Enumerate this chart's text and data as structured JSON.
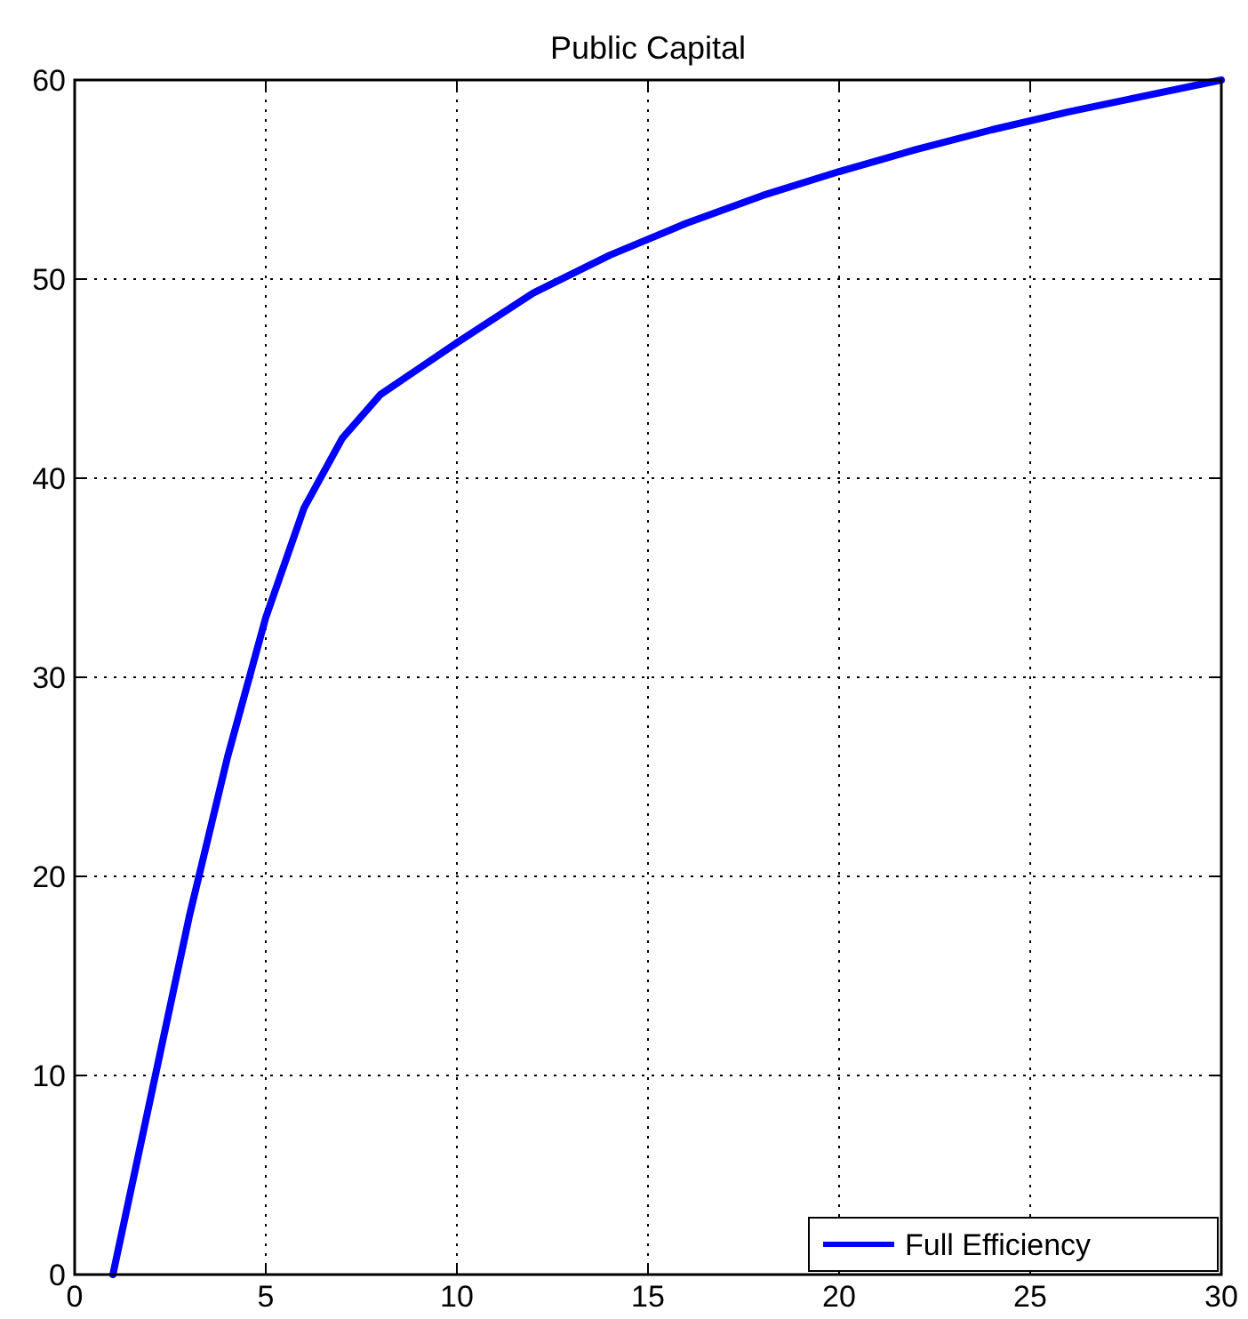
{
  "chart_data": {
    "type": "line",
    "title": "Public Capital",
    "x": [
      1,
      2,
      3,
      4,
      5,
      6,
      7,
      8,
      9,
      10,
      12,
      14,
      16,
      18,
      20,
      22,
      24,
      26,
      28,
      30
    ],
    "series": [
      {
        "name": "Full Efficiency",
        "color": "#0000ff",
        "values": [
          0,
          9,
          18,
          26,
          33,
          38.5,
          42,
          44.2,
          45.5,
          46.8,
          49.3,
          51.2,
          52.8,
          54.2,
          55.4,
          56.5,
          57.5,
          58.4,
          59.2,
          60
        ]
      }
    ],
    "xlim": [
      0,
      30
    ],
    "xticks": [
      0,
      5,
      10,
      15,
      20,
      25,
      30
    ],
    "ylim": [
      0,
      60
    ],
    "yticks": [
      0,
      10,
      20,
      30,
      40,
      50,
      60
    ],
    "grid": true,
    "legend": "bottom right",
    "line_style": "solid",
    "marker": "none"
  }
}
